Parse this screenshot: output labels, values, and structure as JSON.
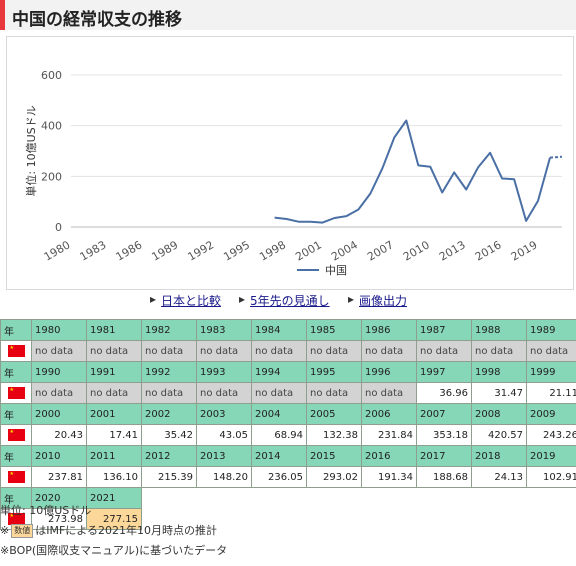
{
  "page": {
    "title": "中国の経常収支の推移"
  },
  "links": [
    {
      "label": "日本と比較"
    },
    {
      "label": "5年先の見通し"
    },
    {
      "label": "画像出力"
    }
  ],
  "chart_data": {
    "type": "line",
    "ylabel": "単位: 10億USドル",
    "yticks": [
      "0",
      "200",
      "400",
      "600"
    ],
    "ylim": [
      0,
      600
    ],
    "xtick_labels": [
      "1980",
      "1983",
      "1986",
      "1989",
      "1992",
      "1995",
      "1998",
      "2001",
      "2004",
      "2007",
      "2010",
      "2013",
      "2016",
      "2019"
    ],
    "xlim": [
      1980,
      2021
    ],
    "legend_position": "bottom",
    "series": [
      {
        "name": "中国",
        "color": "#4a6fa5",
        "x": [
          1997,
          1998,
          1999,
          2000,
          2001,
          2002,
          2003,
          2004,
          2005,
          2006,
          2007,
          2008,
          2009,
          2010,
          2011,
          2012,
          2013,
          2014,
          2015,
          2016,
          2017,
          2018,
          2019,
          2020
        ],
        "y": [
          36.96,
          31.47,
          21.11,
          20.43,
          17.41,
          35.42,
          43.05,
          68.94,
          132.38,
          231.84,
          353.18,
          420.57,
          243.26,
          237.81,
          136.1,
          215.39,
          148.2,
          236.05,
          293.02,
          191.34,
          188.68,
          24.13,
          102.91,
          273.98
        ],
        "estimate_x": [
          2020,
          2021
        ],
        "estimate_y": [
          273.98,
          277.15
        ]
      }
    ]
  },
  "table": {
    "year_label": "年",
    "rows": [
      {
        "years": [
          "1980",
          "1981",
          "1982",
          "1983",
          "1984",
          "1985",
          "1986",
          "1987",
          "1988",
          "1989"
        ],
        "values": [
          "no data",
          "no data",
          "no data",
          "no data",
          "no data",
          "no data",
          "no data",
          "no data",
          "no data",
          "no data"
        ]
      },
      {
        "years": [
          "1990",
          "1991",
          "1992",
          "1993",
          "1994",
          "1995",
          "1996",
          "1997",
          "1998",
          "1999"
        ],
        "values": [
          "no data",
          "no data",
          "no data",
          "no data",
          "no data",
          "no data",
          "no data",
          "36.96",
          "31.47",
          "21.11"
        ]
      },
      {
        "years": [
          "2000",
          "2001",
          "2002",
          "2003",
          "2004",
          "2005",
          "2006",
          "2007",
          "2008",
          "2009"
        ],
        "values": [
          "20.43",
          "17.41",
          "35.42",
          "43.05",
          "68.94",
          "132.38",
          "231.84",
          "353.18",
          "420.57",
          "243.26"
        ]
      },
      {
        "years": [
          "2010",
          "2011",
          "2012",
          "2013",
          "2014",
          "2015",
          "2016",
          "2017",
          "2018",
          "2019"
        ],
        "values": [
          "237.81",
          "136.10",
          "215.39",
          "148.20",
          "236.05",
          "293.02",
          "191.34",
          "188.68",
          "24.13",
          "102.91"
        ]
      },
      {
        "years": [
          "2020",
          "2021"
        ],
        "values": [
          "273.98",
          "277.15"
        ],
        "estimate_flags": [
          false,
          true
        ]
      }
    ]
  },
  "notes": {
    "unit": "単位: 10億USドル",
    "estimate_prefix": "※",
    "estimate_badge": "数値",
    "estimate_text": "はIMFによる2021年10月時点の推計",
    "bop": "※BOP(国際収支マニュアル)に基づいたデータ"
  }
}
